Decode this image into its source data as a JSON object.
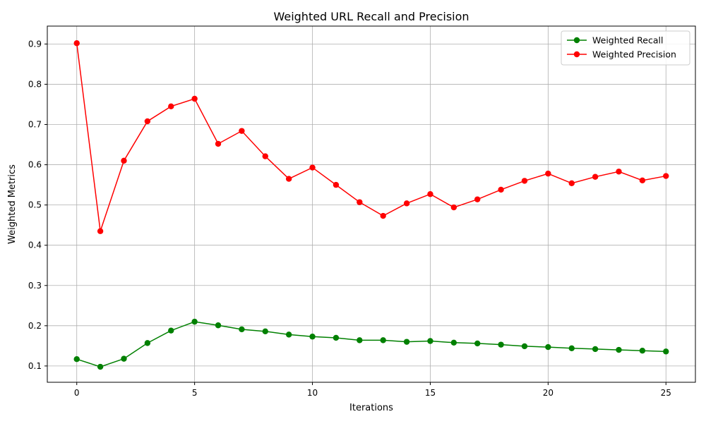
{
  "chart_data": {
    "type": "line",
    "title": "Weighted URL Recall and Precision",
    "xlabel": "Iterations",
    "ylabel": "Weighted Metrics",
    "xlim": [
      -1.25,
      26.25
    ],
    "ylim": [
      0.0595,
      0.9445
    ],
    "x_ticks": [
      0,
      5,
      10,
      15,
      20,
      25
    ],
    "x_tick_labels": [
      "0",
      "5",
      "10",
      "15",
      "20",
      "25"
    ],
    "y_ticks": [
      0.1,
      0.2,
      0.3,
      0.4,
      0.5,
      0.6,
      0.7,
      0.8,
      0.9
    ],
    "y_tick_labels": [
      "0.1",
      "0.2",
      "0.3",
      "0.4",
      "0.5",
      "0.6",
      "0.7",
      "0.8",
      "0.9"
    ],
    "grid": true,
    "legend_position": "top-right",
    "x": [
      0,
      1,
      2,
      3,
      4,
      5,
      6,
      7,
      8,
      9,
      10,
      11,
      12,
      13,
      14,
      15,
      16,
      17,
      18,
      19,
      20,
      21,
      22,
      23,
      24,
      25
    ],
    "series": [
      {
        "name": "Weighted Recall",
        "color": "#008000",
        "marker": "circle",
        "values": [
          0.117,
          0.098,
          0.118,
          0.157,
          0.188,
          0.21,
          0.201,
          0.191,
          0.186,
          0.178,
          0.173,
          0.17,
          0.164,
          0.164,
          0.16,
          0.162,
          0.158,
          0.156,
          0.153,
          0.149,
          0.147,
          0.144,
          0.142,
          0.14,
          0.138,
          0.136
        ]
      },
      {
        "name": "Weighted Precision",
        "color": "#ff0000",
        "marker": "circle",
        "values": [
          0.902,
          0.435,
          0.61,
          0.708,
          0.745,
          0.764,
          0.652,
          0.684,
          0.621,
          0.565,
          0.593,
          0.55,
          0.507,
          0.473,
          0.504,
          0.527,
          0.494,
          0.514,
          0.538,
          0.56,
          0.578,
          0.554,
          0.57,
          0.583,
          0.561,
          0.572
        ]
      }
    ]
  },
  "colors": {
    "grid": "#b0b0b0",
    "axis": "#000000",
    "legend_border": "#cccccc"
  }
}
